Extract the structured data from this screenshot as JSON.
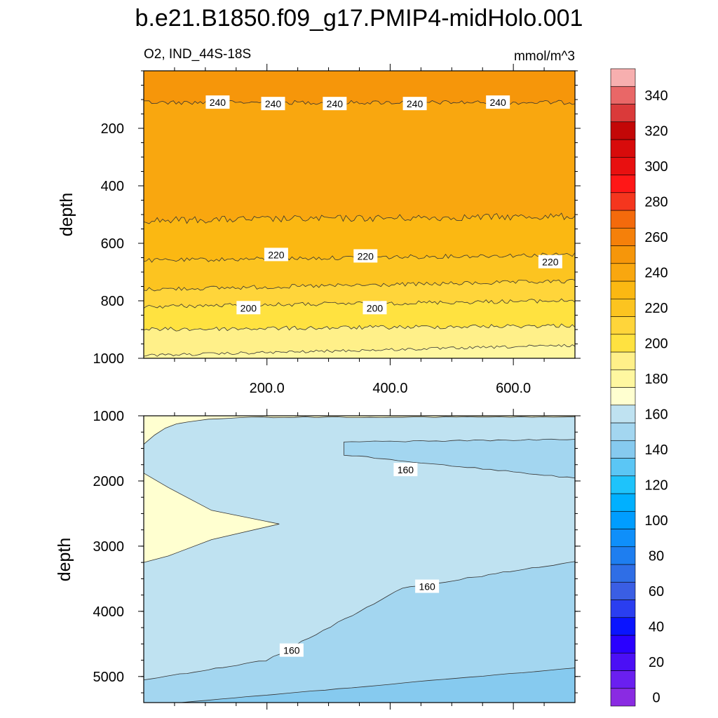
{
  "chart_data": {
    "type": "contour",
    "title": "b.e21.B1850.f09_g17.PMIP4-midHolo.001",
    "variable_label": "O2, IND_44S-18S",
    "units_label": "mmol/m^3",
    "x_range": [
      0,
      700
    ],
    "x_tick_labels": [
      {
        "value": 200,
        "label": "200.0"
      },
      {
        "value": 400,
        "label": "400.0"
      },
      {
        "value": 600,
        "label": "600.0"
      }
    ],
    "panels": [
      {
        "name": "upper",
        "ylabel": "depth",
        "ylim": [
          0,
          1000
        ],
        "y_ticks": [
          200,
          400,
          600,
          800,
          1000
        ],
        "contour_labels": [
          {
            "x": 120,
            "depth": 110,
            "text": "240"
          },
          {
            "x": 210,
            "depth": 115,
            "text": "240"
          },
          {
            "x": 310,
            "depth": 115,
            "text": "240"
          },
          {
            "x": 440,
            "depth": 115,
            "text": "240"
          },
          {
            "x": 575,
            "depth": 110,
            "text": "240"
          },
          {
            "x": 215,
            "depth": 640,
            "text": "220"
          },
          {
            "x": 360,
            "depth": 645,
            "text": "220"
          },
          {
            "x": 660,
            "depth": 665,
            "text": "220"
          },
          {
            "x": 170,
            "depth": 825,
            "text": "200"
          },
          {
            "x": 375,
            "depth": 825,
            "text": "200"
          }
        ]
      },
      {
        "name": "lower",
        "ylabel": "depth",
        "ylim": [
          1000,
          5400
        ],
        "y_ticks": [
          1000,
          2000,
          3000,
          4000,
          5000
        ],
        "contour_labels": [
          {
            "x": 425,
            "depth": 1830,
            "text": "160"
          },
          {
            "x": 460,
            "depth": 3620,
            "text": "160"
          },
          {
            "x": 240,
            "depth": 4600,
            "text": "160"
          }
        ]
      }
    ],
    "colorbar": {
      "levels": [
        0,
        10,
        20,
        30,
        40,
        50,
        60,
        70,
        80,
        90,
        100,
        110,
        120,
        130,
        140,
        150,
        160,
        170,
        180,
        190,
        200,
        210,
        220,
        230,
        240,
        250,
        260,
        270,
        280,
        290,
        300,
        310,
        320,
        330,
        340,
        350
      ],
      "tick_labels": [
        "0",
        "20",
        "40",
        "60",
        "80",
        "100",
        "120",
        "140",
        "160",
        "180",
        "200",
        "220",
        "240",
        "260",
        "280",
        "300",
        "320",
        "340"
      ],
      "colors": [
        "#8a2be2",
        "#6a1ff0",
        "#4b0ff5",
        "#2a00ff",
        "#0a14ff",
        "#2a3ef0",
        "#3a5ee4",
        "#2f6ee6",
        "#1e7ef0",
        "#0f8ffa",
        "#009dff",
        "#00b0ff",
        "#1ec3fb",
        "#5bc6f5",
        "#86caef",
        "#a3d6f0",
        "#bfe2f1",
        "#ffffd0",
        "#fff7a0",
        "#fff089",
        "#ffe240",
        "#ffd53a",
        "#fcc420",
        "#fbb812",
        "#f9a70f",
        "#f6960a",
        "#f5800a",
        "#f46a0c",
        "#f5361e",
        "#ff1717",
        "#e81010",
        "#d80b0b",
        "#c30707",
        "#da3a3a",
        "#e96767",
        "#f7afaf"
      ]
    }
  }
}
